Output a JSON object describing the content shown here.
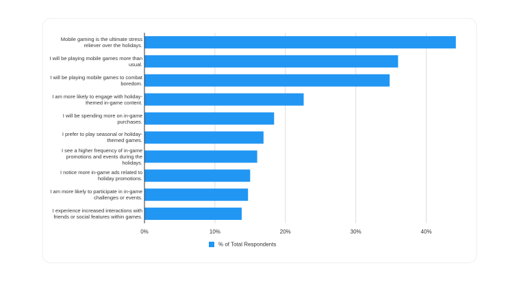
{
  "chart_data": {
    "type": "hbar",
    "categories": [
      "Mobile gaming is the ultimate stress reliever over the holidays.",
      "I will be playing mobile games more than usual.",
      "I will be playing mobile games to combat boredom.",
      "I am more likely to engage with holiday-themed in-game content.",
      "I will be spending more on in-game purchases.",
      "I prefer to play seasonal or holiday-themed games.",
      "I see a higher frequency of in-game promotions and events during the holidays.",
      "I notice more in-game ads related to holiday promotions.",
      "I am more likely to participate in in-game challenges or events.",
      "I experience increased interactions with friends or social features within games."
    ],
    "series": [
      {
        "name": "% of Total Respondents",
        "color": "#2196f3",
        "values": [
          44.2,
          36.0,
          34.8,
          22.6,
          18.4,
          16.9,
          16.0,
          15.0,
          14.7,
          13.8
        ]
      }
    ],
    "xlim": [
      0,
      45
    ],
    "xticks": [
      {
        "value": 0,
        "label": "0%"
      },
      {
        "value": 10,
        "label": "10%"
      },
      {
        "value": 20,
        "label": "20%"
      },
      {
        "value": 30,
        "label": "30%"
      },
      {
        "value": 40,
        "label": "40%"
      }
    ],
    "grid": true,
    "legend": "bottom"
  }
}
